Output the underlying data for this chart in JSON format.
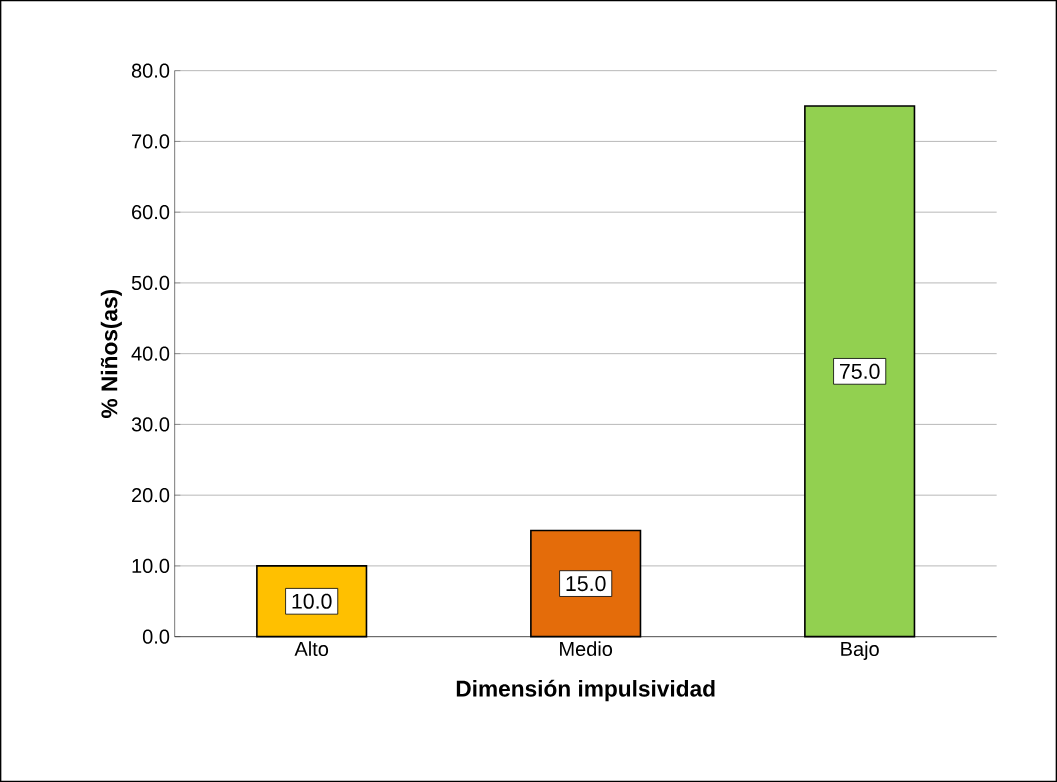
{
  "chart_data": {
    "type": "bar",
    "xlabel": "Dimensión impulsividad",
    "ylabel": "% Niños(as)",
    "categories": [
      "Alto",
      "Medio",
      "Bajo"
    ],
    "values": [
      10.0,
      15.0,
      75.0
    ],
    "colors": [
      "#ffc000",
      "#e46c0a",
      "#92d050"
    ],
    "value_labels": [
      "10.0",
      "15.0",
      "75.0"
    ],
    "ylim": [
      0,
      80
    ],
    "yticks": [
      {
        "value": 0,
        "label": "0.0"
      },
      {
        "value": 10,
        "label": "10.0"
      },
      {
        "value": 20,
        "label": "20.0"
      },
      {
        "value": 30,
        "label": "30.0"
      },
      {
        "value": 40,
        "label": "40.0"
      },
      {
        "value": 50,
        "label": "50.0"
      },
      {
        "value": 60,
        "label": "60.0"
      },
      {
        "value": 70,
        "label": "70.0"
      },
      {
        "value": 80,
        "label": "80.0"
      }
    ],
    "grid": "y"
  }
}
